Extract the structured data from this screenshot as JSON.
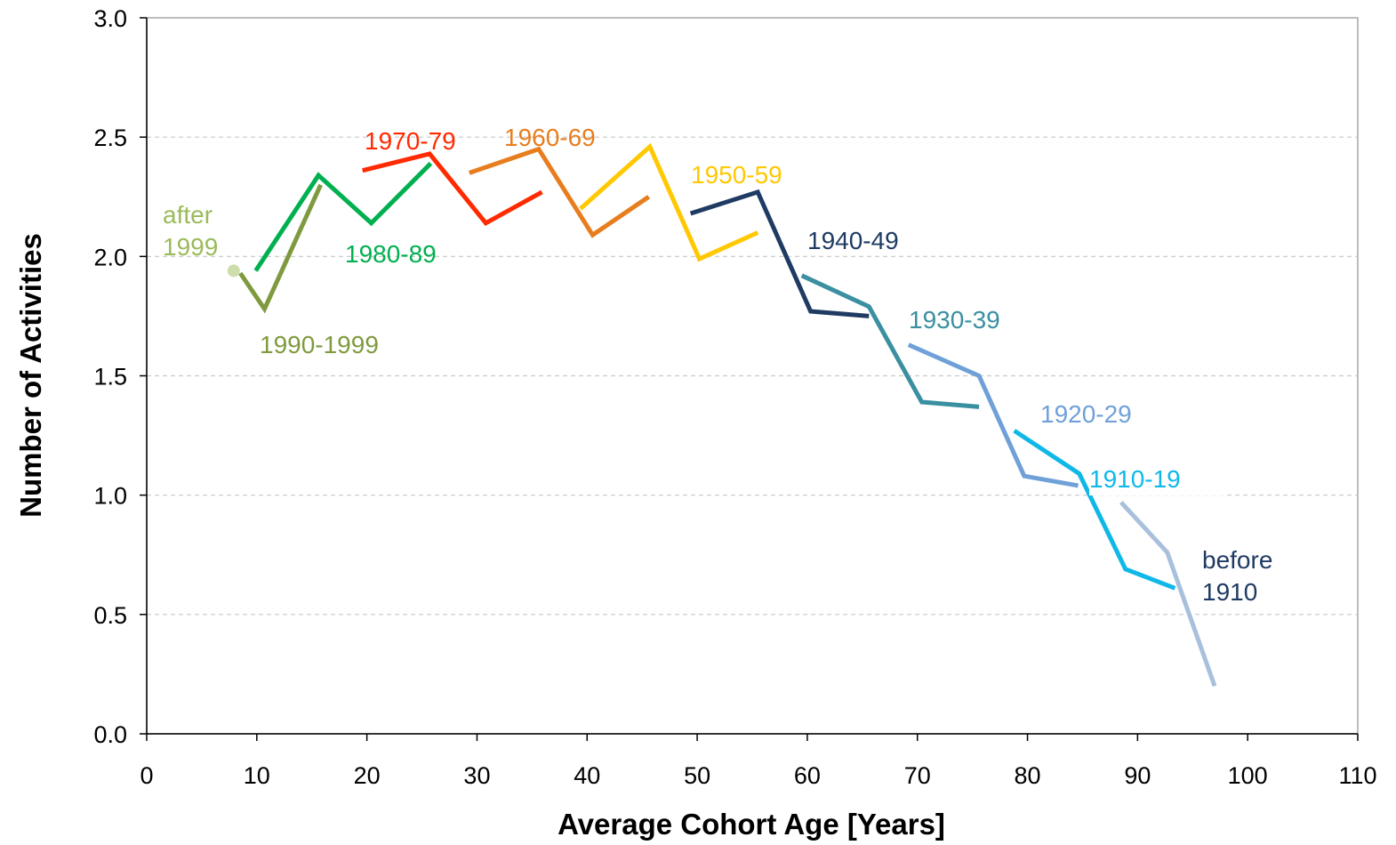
{
  "chart_data": {
    "type": "line",
    "xlabel": "Average Cohort Age [Years]",
    "ylabel": "Number of Activities",
    "xlim": [
      0,
      110
    ],
    "xticks": [
      0,
      10,
      20,
      30,
      40,
      50,
      60,
      70,
      80,
      90,
      100,
      110
    ],
    "ylim": [
      0,
      3
    ],
    "yticks": [
      {
        "value": 0,
        "label": "0.0"
      },
      {
        "value": 0.5,
        "label": "0.5"
      },
      {
        "value": 1,
        "label": "1.0"
      },
      {
        "value": 1.5,
        "label": "1.5"
      },
      {
        "value": 2,
        "label": "2.0"
      },
      {
        "value": 2.5,
        "label": "2.5"
      },
      {
        "value": 3,
        "label": "3.0"
      }
    ],
    "grid": true,
    "series": [
      {
        "name": "after 1999",
        "color": "#9bbb59",
        "x": [
          7.9
        ],
        "values": [
          1.94
        ]
      },
      {
        "name": "1990-1999",
        "color": "#7f9a3e",
        "x": [
          8.5,
          10.7,
          15.8
        ],
        "values": [
          1.93,
          1.78,
          2.3
        ]
      },
      {
        "name": "1980-89",
        "color": "#00b050",
        "x": [
          9.9,
          15.6,
          20.4,
          25.8
        ],
        "values": [
          1.94,
          2.34,
          2.14,
          2.39
        ]
      },
      {
        "name": "1970-79",
        "color": "#ff2a00",
        "x": [
          19.6,
          25.7,
          30.8,
          35.9
        ],
        "values": [
          2.36,
          2.43,
          2.14,
          2.27
        ]
      },
      {
        "name": "1960-69",
        "color": "#e87d1e",
        "x": [
          29.3,
          35.6,
          40.5,
          45.6
        ],
        "values": [
          2.35,
          2.45,
          2.09,
          2.25
        ]
      },
      {
        "name": "1950-59",
        "color": "#ffc800",
        "x": [
          39.4,
          45.7,
          50.2,
          55.5
        ],
        "values": [
          2.2,
          2.46,
          1.99,
          2.1
        ]
      },
      {
        "name": "1940-49",
        "color": "#1f3b63",
        "x": [
          49.4,
          55.5,
          60.3,
          65.6
        ],
        "values": [
          2.18,
          2.27,
          1.77,
          1.75
        ]
      },
      {
        "name": "1930-39",
        "color": "#3a8fa0",
        "x": [
          59.5,
          65.6,
          70.4,
          75.6
        ],
        "values": [
          1.92,
          1.79,
          1.39,
          1.37
        ]
      },
      {
        "name": "1920-29",
        "color": "#6fa0d8",
        "x": [
          69.2,
          75.6,
          79.7,
          84.6
        ],
        "values": [
          1.63,
          1.5,
          1.08,
          1.04
        ]
      },
      {
        "name": "1910-19",
        "color": "#10b8e8",
        "x": [
          78.8,
          84.7,
          88.9,
          93.4
        ],
        "values": [
          1.27,
          1.09,
          0.69,
          0.61
        ]
      },
      {
        "name": "before 1910",
        "color": "#a9c0dc",
        "x": [
          88.5,
          92.7,
          97.0
        ],
        "values": [
          0.97,
          0.76,
          0.2
        ]
      }
    ]
  }
}
